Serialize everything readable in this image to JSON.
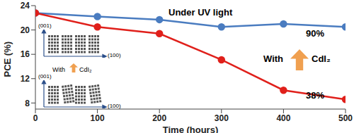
{
  "chart_data": {
    "type": "line",
    "x_label": "Time (hours)",
    "y_label": "PCE (%)",
    "x": [
      0,
      100,
      200,
      300,
      400,
      500
    ],
    "series": [
      {
        "color": "#4a7cc0",
        "values": [
          22.8,
          22.2,
          21.7,
          20.5,
          21.0,
          20.5
        ],
        "marker": "circle"
      },
      {
        "color": "#e0201b",
        "values": [
          22.8,
          20.5,
          19.4,
          15.1,
          10.1,
          8.6
        ],
        "marker": "circle"
      }
    ],
    "xlim": [
      0,
      500
    ],
    "xticks": [
      0,
      100,
      200,
      300,
      400,
      500
    ],
    "ylim": [
      7,
      24
    ],
    "yticks": [
      8,
      12,
      16,
      20,
      24
    ],
    "grid": false,
    "annotations": {
      "condition": "Under UV light",
      "retention_with": "90%",
      "retention_without": "38%",
      "with_word": "With",
      "additive": "CdI₂"
    },
    "inset_labels": {
      "top_axis_vertical": "(001)",
      "top_axis_horizontal": "(100)",
      "bottom_axis_vertical": "(001)",
      "bottom_axis_horizontal": "(100)",
      "bottom_with": "With",
      "bottom_additive": "CdI₂"
    }
  }
}
